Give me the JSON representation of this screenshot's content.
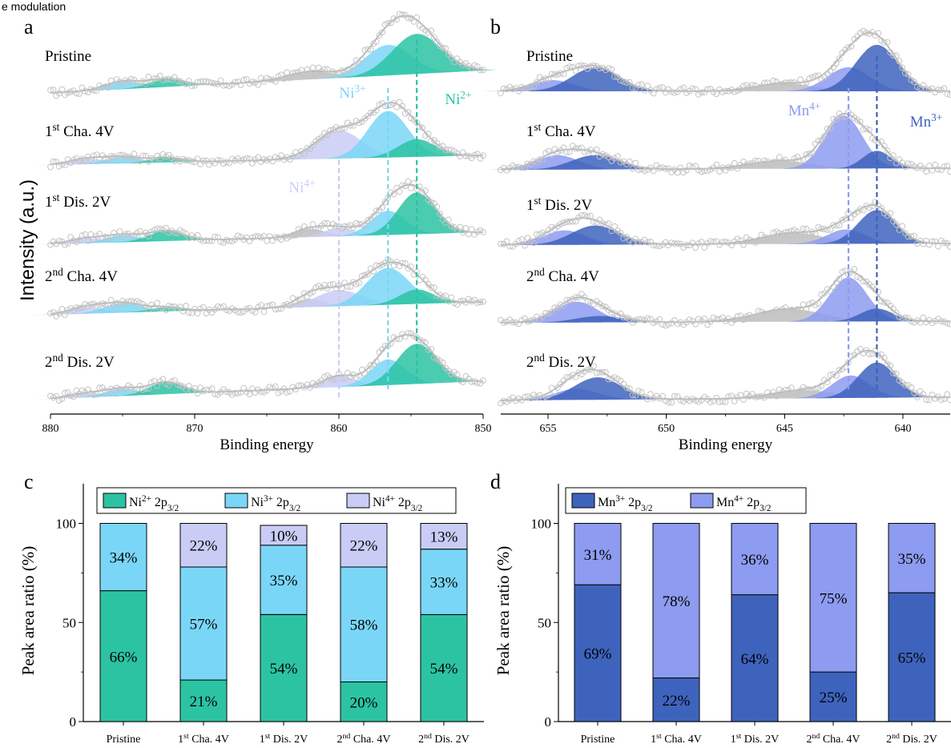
{
  "caption_fragment": "e modulation",
  "colors": {
    "ni2": "#2cc3a3",
    "ni3": "#7ad6f7",
    "ni4": "#c9cdf5",
    "mn3": "#3e63bd",
    "mn4": "#8d9bf0",
    "gray": "#bdbdbd",
    "fit": "#9a9a9a"
  },
  "panel_a": {
    "letter": "a",
    "xlabel": "Binding energy",
    "ylabel": "Intensity (a.u.)",
    "xlim": [
      880,
      850
    ],
    "ticks": [
      "880",
      "870",
      "860",
      "850"
    ],
    "states": [
      {
        "base": "Pristine",
        "sup": "",
        "rest": ""
      },
      {
        "base": "1",
        "sup": "st",
        "rest": " Cha. 4V"
      },
      {
        "base": "1",
        "sup": "st",
        "rest": " Dis. 2V"
      },
      {
        "base": "2",
        "sup": "nd",
        "rest": " Cha. 4V"
      },
      {
        "base": "2",
        "sup": "nd",
        "rest": " Dis. 2V"
      }
    ],
    "peak_labels": [
      {
        "base": "Ni",
        "sup": "3+",
        "color": "#7ad6f7"
      },
      {
        "base": "Ni",
        "sup": "2+",
        "color": "#2cc3a3"
      },
      {
        "base": "Ni",
        "sup": "4+",
        "color": "#c9cdf5"
      }
    ],
    "peak_positions_eV": {
      "ni2": 854.6,
      "ni3": 856.6,
      "ni4": 860.0
    }
  },
  "panel_b": {
    "letter": "b",
    "xlabel": "Binding energy",
    "xlim": [
      657,
      638
    ],
    "ticks": [
      "655",
      "650",
      "645",
      "640"
    ],
    "states": [
      {
        "base": "Pristine",
        "sup": "",
        "rest": ""
      },
      {
        "base": "1",
        "sup": "st",
        "rest": " Cha. 4V"
      },
      {
        "base": "1",
        "sup": "st",
        "rest": " Dis. 2V"
      },
      {
        "base": "2",
        "sup": "nd",
        "rest": " Cha. 4V"
      },
      {
        "base": "2",
        "sup": "nd",
        "rest": " Dis. 2V"
      }
    ],
    "peak_labels": [
      {
        "base": "Mn",
        "sup": "4+",
        "color": "#8d9bf0"
      },
      {
        "base": "Mn",
        "sup": "3+",
        "color": "#3e63bd"
      }
    ],
    "peak_positions_eV": {
      "mn4": 642.3,
      "mn3": 641.1
    }
  },
  "chart_data": [
    {
      "type": "bar",
      "panel": "c",
      "stacked": true,
      "ylabel": "Peak area ratio (%)",
      "ylim": [
        0,
        120
      ],
      "yticks": [
        "0",
        "50",
        "100"
      ],
      "categories": [
        {
          "base": "Pristine",
          "sup": "",
          "rest": ""
        },
        {
          "base": "1",
          "sup": "st",
          "rest": " Cha. 4V"
        },
        {
          "base": "1",
          "sup": "st",
          "rest": " Dis. 2V"
        },
        {
          "base": "2",
          "sup": "nd",
          "rest": " Cha. 4V"
        },
        {
          "base": "2",
          "sup": "nd",
          "rest": " Dis. 2V"
        }
      ],
      "series": [
        {
          "base": "Ni",
          "sup": "2+",
          "rest": " 2p",
          "sub": "3/2",
          "color": "#2cc3a3",
          "values": [
            66,
            21,
            54,
            20,
            54
          ],
          "labels": [
            "66%",
            "21%",
            "54%",
            "20%",
            "54%"
          ]
        },
        {
          "base": "Ni",
          "sup": "3+",
          "rest": " 2p",
          "sub": "3/2",
          "color": "#7ad6f7",
          "values": [
            34,
            57,
            35,
            58,
            33
          ],
          "labels": [
            "34%",
            "57%",
            "35%",
            "58%",
            "33%"
          ]
        },
        {
          "base": "Ni",
          "sup": "4+",
          "rest": " 2p",
          "sub": "3/2",
          "color": "#c9cdf5",
          "values": [
            0,
            22,
            10,
            22,
            13
          ],
          "labels": [
            "",
            "22%",
            "10%",
            "22%",
            "13%"
          ]
        }
      ],
      "legend_position": "top"
    },
    {
      "type": "bar",
      "panel": "d",
      "stacked": true,
      "ylabel": "Peak area ratio (%)",
      "ylim": [
        0,
        120
      ],
      "yticks": [
        "0",
        "50",
        "100"
      ],
      "categories": [
        {
          "base": "Pristine",
          "sup": "",
          "rest": ""
        },
        {
          "base": "1",
          "sup": "st",
          "rest": " Cha. 4V"
        },
        {
          "base": "1",
          "sup": "st",
          "rest": " Dis. 2V"
        },
        {
          "base": "2",
          "sup": "nd",
          "rest": " Cha. 4V"
        },
        {
          "base": "2",
          "sup": "nd",
          "rest": " Dis. 2V"
        }
      ],
      "series": [
        {
          "base": "Mn",
          "sup": "3+",
          "rest": " 2p",
          "sub": "3/2",
          "color": "#3e63bd",
          "values": [
            69,
            22,
            64,
            25,
            65
          ],
          "labels": [
            "69%",
            "22%",
            "64%",
            "25%",
            "65%"
          ]
        },
        {
          "base": "Mn",
          "sup": "4+",
          "rest": " 2p",
          "sub": "3/2",
          "color": "#8d9bf0",
          "values": [
            31,
            78,
            36,
            75,
            35
          ],
          "labels": [
            "31%",
            "78%",
            "36%",
            "75%",
            "35%"
          ]
        }
      ],
      "legend_position": "top"
    }
  ]
}
